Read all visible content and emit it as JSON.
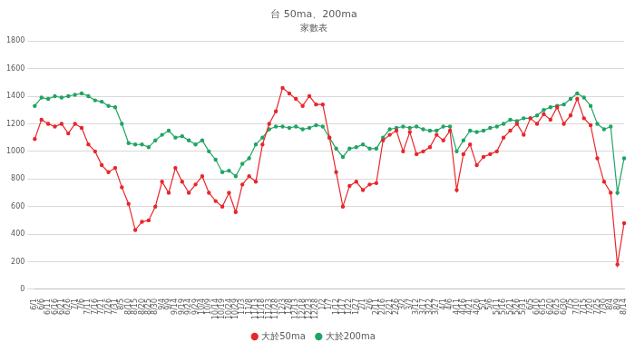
{
  "chart_data": {
    "type": "line",
    "title": "台 50ma、200ma",
    "subtitle": "家數表",
    "categories": [
      "6/1",
      "6/6",
      "6/11",
      "6/16",
      "6/21",
      "6/26",
      "7/1",
      "7/6",
      "7/11",
      "7/16",
      "7/21",
      "7/26",
      "7/31",
      "8/5",
      "8/10",
      "8/15",
      "8/20",
      "8/25",
      "8/30",
      "9/4",
      "9/9",
      "9/14",
      "9/19",
      "9/24",
      "9/29",
      "10/4",
      "10/9",
      "10/14",
      "10/19",
      "10/24",
      "10/29",
      "11/3",
      "11/8",
      "11/13",
      "11/18",
      "11/23",
      "11/28",
      "12/3",
      "12/8",
      "12/13",
      "12/18",
      "12/23",
      "12/28",
      "1/2",
      "1/7",
      "1/12",
      "1/17",
      "1/22",
      "1/27",
      "2/1",
      "2/6",
      "2/11",
      "2/16",
      "2/21",
      "2/26",
      "3/2",
      "3/7",
      "3/12",
      "3/17",
      "3/22",
      "3/27",
      "4/1",
      "4/6",
      "4/11",
      "4/16",
      "4/21",
      "4/26",
      "5/1",
      "5/6",
      "5/11",
      "5/16",
      "5/21",
      "5/26",
      "5/31",
      "6/5",
      "6/10",
      "6/15",
      "6/20",
      "6/25",
      "6/30",
      "7/5",
      "7/10",
      "7/15",
      "7/20",
      "7/25",
      "7/30",
      "8/4",
      "8/9",
      "8/14"
    ],
    "series": [
      {
        "name": "大於50ma",
        "color": "#e8262a",
        "marker": "circle",
        "values": [
          1090,
          1230,
          1200,
          1180,
          1200,
          1130,
          1200,
          1170,
          1050,
          1000,
          900,
          850,
          880,
          740,
          620,
          430,
          490,
          500,
          600,
          780,
          700,
          880,
          780,
          700,
          760,
          820,
          700,
          640,
          600,
          700,
          560,
          760,
          820,
          780,
          1050,
          1200,
          1290,
          1460,
          1420,
          1380,
          1330,
          1400,
          1340,
          1340,
          1100,
          850,
          600,
          750,
          780,
          720,
          760,
          770,
          1080,
          1120,
          1150,
          1000,
          1140,
          980,
          1000,
          1030,
          1120,
          1080,
          1150,
          720,
          980,
          1050,
          900,
          960,
          980,
          1000,
          1100,
          1150,
          1200,
          1120,
          1240,
          1200,
          1270,
          1230,
          1320,
          1200,
          1260,
          1380,
          1240,
          1190,
          950,
          780,
          700,
          180,
          480
        ]
      },
      {
        "name": "大於200ma",
        "color": "#1fa463",
        "marker": "circle",
        "values": [
          1330,
          1390,
          1380,
          1400,
          1390,
          1400,
          1410,
          1420,
          1400,
          1370,
          1360,
          1330,
          1320,
          1200,
          1060,
          1050,
          1050,
          1030,
          1080,
          1120,
          1150,
          1100,
          1110,
          1080,
          1050,
          1080,
          1000,
          940,
          850,
          860,
          820,
          910,
          950,
          1050,
          1100,
          1160,
          1180,
          1180,
          1170,
          1180,
          1160,
          1170,
          1190,
          1180,
          1100,
          1020,
          960,
          1020,
          1030,
          1050,
          1020,
          1020,
          1100,
          1160,
          1170,
          1180,
          1170,
          1180,
          1160,
          1150,
          1150,
          1180,
          1180,
          1000,
          1080,
          1150,
          1140,
          1150,
          1170,
          1180,
          1200,
          1230,
          1220,
          1240,
          1240,
          1260,
          1300,
          1320,
          1330,
          1340,
          1380,
          1420,
          1390,
          1330,
          1200,
          1160,
          1180,
          700,
          950
        ]
      }
    ],
    "ylim": [
      0,
      1800
    ],
    "yticks": [
      0,
      200,
      400,
      600,
      800,
      1000,
      1200,
      1400,
      1600,
      1800
    ],
    "grid": true,
    "legend": "bottom"
  }
}
